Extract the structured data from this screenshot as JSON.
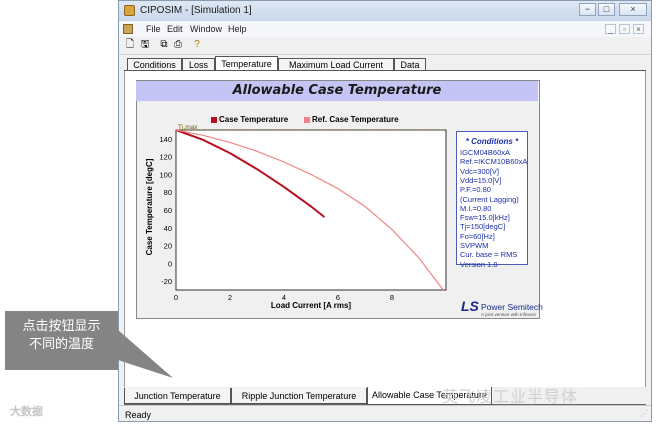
{
  "window": {
    "title": "CIPOSIM - [Simulation 1]",
    "controls": {
      "minimize": "−",
      "maximize": "□",
      "close": "×"
    }
  },
  "menu": {
    "items": [
      "File",
      "Edit",
      "Window",
      "Help"
    ]
  },
  "toolbar": {
    "icons": [
      "new-icon",
      "save-icon",
      "copy-icon",
      "print-icon",
      "help-icon"
    ]
  },
  "tabs": [
    "Conditions",
    "Loss",
    "Temperature",
    "Maximum Load Current",
    "Data"
  ],
  "active_tab": "Temperature",
  "chart": {
    "title": "Allowable Case Temperature",
    "legend": [
      "Case Temperature",
      "Ref. Case Temperature"
    ],
    "annotation": "Tj,max"
  },
  "chart_data": {
    "type": "line",
    "title": "Allowable Case Temperature",
    "xlabel": "Load Current [A rms]",
    "ylabel": "Case Temperature [degC]",
    "xlim": [
      0,
      10
    ],
    "ylim": [
      -30,
      150
    ],
    "xticks": [
      0,
      2,
      4,
      6,
      8
    ],
    "yticks": [
      -20,
      0,
      20,
      40,
      60,
      80,
      100,
      120,
      140
    ],
    "reference_line": {
      "label": "Tj,max",
      "y": 150
    },
    "series": [
      {
        "name": "Case Temperature",
        "color": "#b80f1f",
        "x": [
          0,
          1,
          2,
          3,
          4,
          5,
          5.5
        ],
        "y": [
          150,
          139,
          124,
          106,
          86,
          64,
          52
        ]
      },
      {
        "name": "Ref. Case Temperature",
        "color": "#f08585",
        "x": [
          0,
          1,
          2,
          3,
          4,
          5,
          6,
          7,
          8,
          9,
          9.9
        ],
        "y": [
          150,
          144,
          136,
          126,
          114,
          100,
          84,
          64,
          38,
          6,
          -30
        ]
      }
    ],
    "grid": true,
    "legend_position": "top"
  },
  "conditions": {
    "title": "* Conditions *",
    "lines": [
      "IGCM04B60xA",
      "Ref.=IKCM10B60xA",
      "Vdc=300[V]",
      "Vdd=15.0[V]",
      "P.F.=0.80",
      "(Current Lagging)",
      "M.I.=0.80",
      "Fsw=15.0[kHz]",
      "Tj=150[degC]",
      "Fo=60[Hz]",
      "SVPWM",
      "Cur. base = RMS",
      "Version 1.0"
    ]
  },
  "logo": {
    "mark": "LS",
    "text": "Power Semitech",
    "subtitle": "A joint venture with Infineon"
  },
  "bottom_tabs": [
    "Junction Temperature",
    "Ripple Junction Temperature",
    "Allowable Case Temperature"
  ],
  "active_bottom_tab": "Allowable Case Temperature",
  "status": "Ready",
  "callout": {
    "line1": "点击按钮显示",
    "line2": "不同的温度"
  },
  "watermarks": {
    "left": "大数据",
    "right": "英飞凌工业半导体"
  },
  "colors": {
    "chart_title_bg": "#c4c4f5",
    "conditions_text": "#1d2fa8"
  }
}
